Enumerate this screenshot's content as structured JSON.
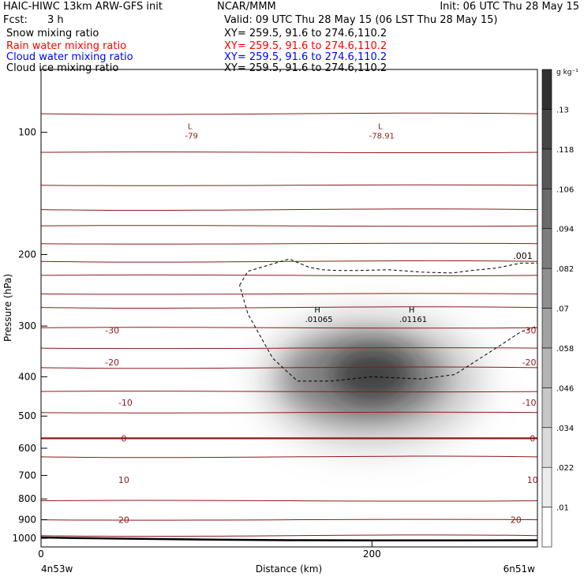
{
  "header": {
    "model_line": "HAIC-HIWC 13km ARW-GFS init",
    "org": "NCAR/MMM",
    "init": "Init: 06 UTC Thu 28 May 15",
    "fcst_label": "Fcst:",
    "fcst_value": "3 h",
    "valid": "Valid: 09 UTC Thu 28 May 15 (06 LST Thu 28 May 15)",
    "fields": [
      {
        "name": "Snow mixing ratio",
        "xy": "XY= 259.5, 91.6 to 274.6,110.2",
        "color": "#000000"
      },
      {
        "name": "Rain water mixing ratio",
        "xy": "XY= 259.5, 91.6 to 274.6,110.2",
        "color": "#ff0000"
      },
      {
        "name": "Cloud water mixing ratio",
        "xy": "XY= 259.5, 91.6 to 274.6,110.2",
        "color": "#0000ff"
      },
      {
        "name": "Cloud ice mixing ratio",
        "xy": "XY= 259.5, 91.6 to 274.6,110.2",
        "color": "#000000"
      }
    ]
  },
  "chart_data": {
    "type": "contour",
    "xlabel": "Distance (km)",
    "ylabel": "Pressure (hPa)",
    "xlim": [
      0,
      300
    ],
    "ylim": [
      1050,
      70
    ],
    "y_scale": "log-pressure",
    "x_ticks": [
      0,
      200
    ],
    "x_tick_labels": [
      "0",
      "200"
    ],
    "y_ticks": [
      100,
      200,
      300,
      400,
      500,
      600,
      700,
      800,
      900,
      1000
    ],
    "y_tick_labels": [
      "100",
      "200",
      "300",
      "400",
      "500",
      "600",
      "700",
      "800",
      "900",
      "1000"
    ],
    "x_endpoint_labels": {
      "left": "4n53w",
      "right": "6n51w"
    },
    "colorbar": {
      "unit": "g kg⁻¹",
      "levels": [
        0.01,
        0.022,
        0.034,
        0.046,
        0.058,
        0.07,
        0.082,
        0.094,
        0.106,
        0.118,
        0.13
      ],
      "labels": [
        ".01",
        ".022",
        ".034",
        ".046",
        ".058",
        ".07",
        ".082",
        ".094",
        ".106",
        ".118",
        ".13"
      ]
    },
    "shaded_field": {
      "name": "Cloud ice mixing ratio",
      "max_value": 0.13,
      "center_x_km": 200,
      "center_p_hpa": 395,
      "extent_x_km": [
        135,
        275
      ],
      "extent_p_hpa": [
        230,
        580
      ]
    },
    "temperature_contours": {
      "color": "#8b1a1a",
      "isotherm_pressures_hpa": [
        90,
        112,
        135,
        155,
        170,
        188,
        208,
        225,
        250,
        270,
        303,
        340,
        380,
        435,
        490,
        630,
        808,
        900,
        985
      ],
      "labels": [
        {
          "text": "-30",
          "x_km": 43,
          "p_hpa": 307
        },
        {
          "text": "-30",
          "x_km": 295,
          "p_hpa": 307
        },
        {
          "text": "-20",
          "x_km": 43,
          "p_hpa": 368
        },
        {
          "text": "-20",
          "x_km": 295,
          "p_hpa": 368
        },
        {
          "text": "-10",
          "x_km": 51,
          "p_hpa": 463
        },
        {
          "text": "-10",
          "x_km": 295,
          "p_hpa": 463
        },
        {
          "text": "0",
          "x_km": 50,
          "p_hpa": 567
        },
        {
          "text": "0",
          "x_km": 297,
          "p_hpa": 567
        },
        {
          "text": "10",
          "x_km": 50,
          "p_hpa": 717
        },
        {
          "text": "10",
          "x_km": 297,
          "p_hpa": 717
        },
        {
          "text": "20",
          "x_km": 50,
          "p_hpa": 900
        },
        {
          "text": "20",
          "x_km": 287,
          "p_hpa": 900
        }
      ],
      "bold_isotherm_label": "0"
    },
    "extrema": [
      {
        "type": "L",
        "value": "-79",
        "x_km": 90,
        "p_hpa": 100
      },
      {
        "type": "L",
        "value": "-78.91",
        "x_km": 205,
        "p_hpa": 100
      },
      {
        "type": "H",
        "value": ".01065",
        "x_km": 167,
        "p_hpa": 283
      },
      {
        "type": "H",
        "value": ".01161",
        "x_km": 224,
        "p_hpa": 283
      }
    ],
    "dashed_contour": {
      "label": ".001",
      "x_km": [
        120,
        125,
        150,
        162,
        162,
        170,
        180,
        190,
        210,
        230,
        248,
        260,
        275,
        290,
        300,
        300,
        290,
        275,
        250,
        230,
        200,
        175,
        155,
        140,
        125,
        120
      ],
      "p_hpa": [
        238,
        220,
        205,
        215,
        215,
        218,
        219,
        219,
        218,
        221,
        222,
        219,
        216,
        210,
        210,
        300,
        310,
        340,
        395,
        405,
        400,
        410,
        410,
        360,
        280,
        238
      ]
    },
    "terrain": {
      "x_km": [
        0,
        20,
        50,
        80,
        110,
        150,
        200,
        250,
        300
      ],
      "p_hpa": [
        995,
        998,
        1002,
        1005,
        1008,
        1011,
        1012,
        1012,
        1011
      ]
    }
  }
}
